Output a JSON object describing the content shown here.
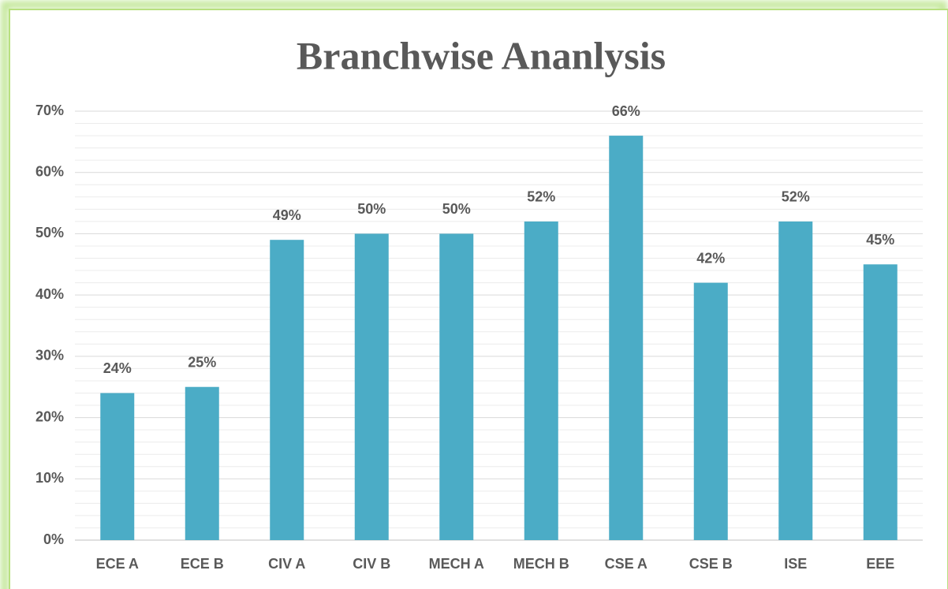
{
  "chart_data": {
    "type": "bar",
    "title": "Branchwise Ananlysis",
    "categories": [
      "ECE A",
      "ECE B",
      "CIV A",
      "CIV B",
      "MECH A",
      "MECH B",
      "CSE A",
      "CSE B",
      "ISE",
      "EEE"
    ],
    "values": [
      24,
      25,
      49,
      50,
      50,
      52,
      66,
      42,
      52,
      45
    ],
    "value_labels": [
      "24%",
      "25%",
      "49%",
      "50%",
      "50%",
      "52%",
      "66%",
      "42%",
      "52%",
      "45%"
    ],
    "color": "#4bacc6",
    "ylim": [
      0,
      70
    ],
    "yticks": [
      {
        "value": 0,
        "label": "0%"
      },
      {
        "value": 10,
        "label": "10%"
      },
      {
        "value": 20,
        "label": "20%"
      },
      {
        "value": 30,
        "label": "30%"
      },
      {
        "value": 40,
        "label": "40%"
      },
      {
        "value": 50,
        "label": "50%"
      },
      {
        "value": 60,
        "label": "60%"
      },
      {
        "value": 70,
        "label": "70%"
      }
    ],
    "yminorticks": [
      2,
      4,
      6,
      8,
      12,
      14,
      16,
      18,
      22,
      24,
      26,
      28,
      32,
      34,
      36,
      38,
      42,
      44,
      46,
      48,
      52,
      54,
      56,
      58,
      62,
      64,
      66,
      68
    ],
    "grid": true
  }
}
